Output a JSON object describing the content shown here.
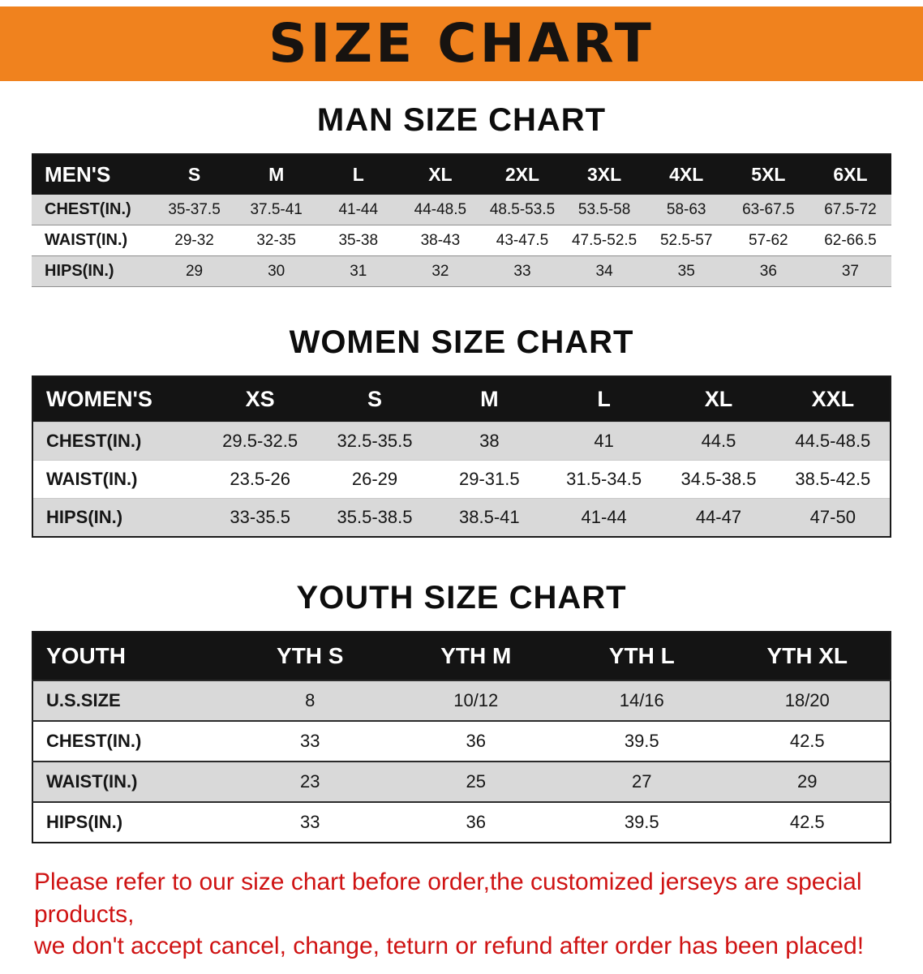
{
  "banner": {
    "title": "SIZE CHART"
  },
  "colors": {
    "banner_bg": "#F0821E",
    "header_bg": "#141414",
    "row_gray": "#d9d9d9",
    "footer_red": "#cf1313"
  },
  "sections": [
    {
      "heading": "MAN SIZE CHART",
      "table": {
        "header": [
          "MEN'S",
          "S",
          "M",
          "L",
          "XL",
          "2XL",
          "3XL",
          "4XL",
          "5XL",
          "6XL"
        ],
        "rows": [
          [
            "CHEST(IN.)",
            "35-37.5",
            "37.5-41",
            "41-44",
            "44-48.5",
            "48.5-53.5",
            "53.5-58",
            "58-63",
            "63-67.5",
            "67.5-72"
          ],
          [
            "WAIST(IN.)",
            "29-32",
            "32-35",
            "35-38",
            "38-43",
            "43-47.5",
            "47.5-52.5",
            "52.5-57",
            "57-62",
            "62-66.5"
          ],
          [
            "HIPS(IN.)",
            "29",
            "30",
            "31",
            "32",
            "33",
            "34",
            "35",
            "36",
            "37"
          ]
        ]
      }
    },
    {
      "heading": "WOMEN SIZE CHART",
      "table": {
        "header": [
          "WOMEN'S",
          "XS",
          "S",
          "M",
          "L",
          "XL",
          "XXL"
        ],
        "rows": [
          [
            "CHEST(IN.)",
            "29.5-32.5",
            "32.5-35.5",
            "38",
            "41",
            "44.5",
            "44.5-48.5"
          ],
          [
            "WAIST(IN.)",
            "23.5-26",
            "26-29",
            "29-31.5",
            "31.5-34.5",
            "34.5-38.5",
            "38.5-42.5"
          ],
          [
            "HIPS(IN.)",
            "33-35.5",
            "35.5-38.5",
            "38.5-41",
            "41-44",
            "44-47",
            "47-50"
          ]
        ]
      }
    },
    {
      "heading": "YOUTH SIZE CHART",
      "table": {
        "header": [
          "YOUTH",
          "YTH S",
          "YTH M",
          "YTH L",
          "YTH XL"
        ],
        "rows": [
          [
            "U.S.SIZE",
            "8",
            "10/12",
            "14/16",
            "18/20"
          ],
          [
            "CHEST(IN.)",
            "33",
            "36",
            "39.5",
            "42.5"
          ],
          [
            "WAIST(IN.)",
            "23",
            "25",
            "27",
            "29"
          ],
          [
            "HIPS(IN.)",
            "33",
            "36",
            "39.5",
            "42.5"
          ]
        ]
      }
    }
  ],
  "footer": {
    "line1": "Please refer to our size chart before order,the customized jerseys are special products,",
    "line2": "we don't accept cancel, change, teturn or refund after order has been placed!"
  }
}
